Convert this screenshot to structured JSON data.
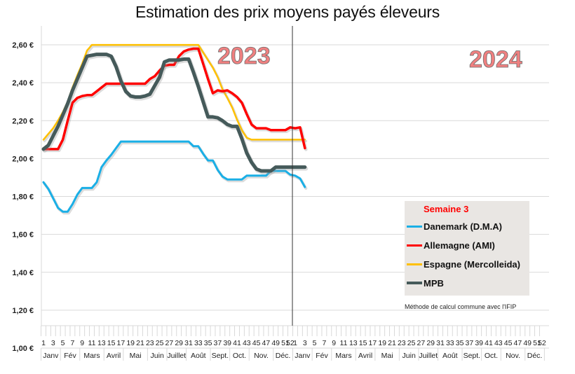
{
  "chart_data": {
    "type": "line",
    "title": "Estimation des prix moyens payés éleveurs",
    "xlabel": "",
    "ylabel": "",
    "ylim": [
      1.0,
      2.7
    ],
    "yticks": [
      1.0,
      1.2,
      1.4,
      1.6,
      1.8,
      2.0,
      2.2,
      2.4,
      2.6
    ],
    "ytick_labels": [
      "1,00 €",
      "1,20 €",
      "1,40 €",
      "1,60 €",
      "1,80 €",
      "2,00 €",
      "2,20 €",
      "2,40 €",
      "2,60 €"
    ],
    "grid": true,
    "x_axis": {
      "years": [
        {
          "label": "2023",
          "week_labels": [
            "1",
            "3",
            "5",
            "7",
            "9",
            "11",
            "13",
            "15",
            "17",
            "19",
            "21",
            "23",
            "25",
            "27",
            "29",
            "31",
            "33",
            "35",
            "37",
            "39",
            "41",
            "43",
            "45",
            "47",
            "49",
            "51",
            "52"
          ],
          "months": [
            "Janv",
            "Fév",
            "Mars",
            "Avril",
            "Mai",
            "Juin",
            "Juillet",
            "Août",
            "Sept.",
            "Oct.",
            "Nov.",
            "Déc."
          ]
        },
        {
          "label": "2024",
          "week_labels": [
            "1",
            "3",
            "5",
            "7",
            "9",
            "11",
            "13",
            "15",
            "17",
            "19",
            "21",
            "23",
            "25",
            "27",
            "29",
            "31",
            "33",
            "35",
            "37",
            "39",
            "41",
            "43",
            "45",
            "47",
            "49",
            "51",
            "52"
          ],
          "months": [
            "Janv",
            "Fév",
            "Mars",
            "Avril",
            "Mai",
            "Juin",
            "Juillet",
            "Août",
            "Sept.",
            "Oct.",
            "Nov.",
            "Déc."
          ]
        }
      ],
      "month_week_bounds": [
        0,
        4,
        8,
        13,
        17,
        22,
        26,
        30,
        35,
        39,
        43,
        48,
        52
      ]
    },
    "x": [
      1,
      2,
      3,
      4,
      5,
      6,
      7,
      8,
      9,
      10,
      11,
      12,
      13,
      14,
      15,
      16,
      17,
      18,
      19,
      20,
      21,
      22,
      23,
      24,
      25,
      26,
      27,
      28,
      29,
      30,
      31,
      32,
      33,
      34,
      35,
      36,
      37,
      38,
      39,
      40,
      41,
      42,
      43,
      44,
      45,
      46,
      47,
      48,
      49,
      50,
      51,
      52,
      53,
      54,
      55
    ],
    "x_note": "weeks 1-52 = 2023, weeks 53-55 = 2024 weeks 1-3",
    "series": [
      {
        "name": "Danemark (D.M.A)",
        "color": "#1aafe6",
        "values": [
          1.875,
          1.84,
          1.79,
          1.74,
          1.72,
          1.72,
          1.76,
          1.81,
          1.845,
          1.845,
          1.845,
          1.875,
          1.955,
          1.99,
          2.02,
          2.055,
          2.09,
          2.09,
          2.09,
          2.09,
          2.09,
          2.09,
          2.09,
          2.09,
          2.09,
          2.09,
          2.09,
          2.09,
          2.09,
          2.09,
          2.09,
          2.065,
          2.065,
          2.025,
          1.99,
          1.99,
          1.94,
          1.905,
          1.89,
          1.89,
          1.89,
          1.89,
          1.91,
          1.91,
          1.91,
          1.91,
          1.91,
          1.935,
          1.935,
          1.935,
          1.935,
          1.915,
          1.91,
          1.895,
          1.85
        ]
      },
      {
        "name": "Allemagne (AMI)",
        "color": "#ff0000",
        "values": [
          2.05,
          2.05,
          2.05,
          2.05,
          2.1,
          2.2,
          2.295,
          2.32,
          2.33,
          2.335,
          2.335,
          2.355,
          2.375,
          2.395,
          2.395,
          2.395,
          2.395,
          2.395,
          2.395,
          2.395,
          2.395,
          2.395,
          2.42,
          2.435,
          2.465,
          2.49,
          2.495,
          2.495,
          2.54,
          2.565,
          2.575,
          2.58,
          2.58,
          2.5,
          2.42,
          2.345,
          2.36,
          2.355,
          2.36,
          2.345,
          2.325,
          2.295,
          2.235,
          2.18,
          2.16,
          2.16,
          2.16,
          2.15,
          2.15,
          2.15,
          2.15,
          2.165,
          2.16,
          2.165,
          2.055
        ]
      },
      {
        "name": "Espagne (Mercolleida)",
        "color": "#ffc000",
        "values": [
          2.1,
          2.13,
          2.16,
          2.2,
          2.245,
          2.3,
          2.375,
          2.44,
          2.5,
          2.57,
          2.6,
          2.6,
          2.6,
          2.6,
          2.6,
          2.6,
          2.6,
          2.6,
          2.6,
          2.6,
          2.6,
          2.6,
          2.6,
          2.6,
          2.6,
          2.6,
          2.6,
          2.6,
          2.6,
          2.6,
          2.6,
          2.6,
          2.6,
          2.56,
          2.52,
          2.48,
          2.43,
          2.365,
          2.32,
          2.27,
          2.205,
          2.15,
          2.11,
          2.1,
          2.1,
          2.1,
          2.1,
          2.1,
          2.1,
          2.1,
          2.1,
          2.1,
          2.1,
          2.1,
          2.1
        ]
      },
      {
        "name": "MPB",
        "color": "#455a5a",
        "values": [
          2.05,
          2.07,
          2.12,
          2.17,
          2.23,
          2.29,
          2.36,
          2.42,
          2.48,
          2.54,
          2.545,
          2.55,
          2.55,
          2.55,
          2.54,
          2.485,
          2.41,
          2.355,
          2.33,
          2.325,
          2.325,
          2.33,
          2.34,
          2.385,
          2.43,
          2.51,
          2.52,
          2.52,
          2.52,
          2.525,
          2.525,
          2.455,
          2.38,
          2.3,
          2.22,
          2.22,
          2.215,
          2.2,
          2.18,
          2.17,
          2.17,
          2.105,
          2.03,
          1.98,
          1.945,
          1.935,
          1.935,
          1.935,
          1.955,
          1.955,
          1.955,
          1.955,
          1.955,
          1.955,
          1.955
        ]
      }
    ],
    "annotations": [
      {
        "text": "2023",
        "color": "#f08080"
      },
      {
        "text": "2024",
        "color": "#f08080"
      },
      {
        "text": "Méthode de calcul commune avec l'IFIP"
      }
    ],
    "legend": {
      "title": "Semaine 3",
      "title_color": "#ff0000",
      "placement": "bottom-right",
      "background": "#e9e6e3",
      "items": [
        "Danemark (D.M.A)",
        "Allemagne (AMI)",
        "Espagne (Mercolleida)",
        "MPB"
      ]
    },
    "year_separator_after_week": 52
  },
  "title": "Estimation des prix moyens payés éleveurs",
  "legend": {
    "title": "Semaine 3",
    "items": [
      {
        "label": "Danemark (D.M.A)",
        "color": "#1aafe6"
      },
      {
        "label": "Allemagne (AMI)",
        "color": "#ff0000"
      },
      {
        "label": "Espagne (Mercolleida)",
        "color": "#ffc000"
      },
      {
        "label": "MPB",
        "color": "#455a5a"
      }
    ]
  },
  "footnote": "Méthode de calcul commune avec l'IFIP",
  "year_labels": [
    "2023",
    "2024"
  ]
}
